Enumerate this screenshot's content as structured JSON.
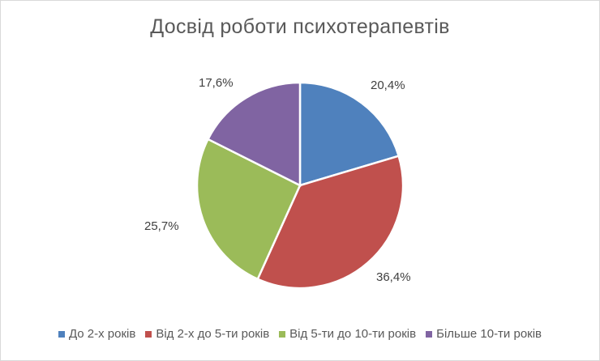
{
  "chart_data": {
    "type": "pie",
    "title": "Досвід роботи психотерапевтів",
    "categories": [
      "До 2-х років",
      "Від 2-х до 5-ти років",
      "Від 5-ти до 10-ти років",
      "Більше 10-ти років"
    ],
    "values": [
      20.4,
      36.4,
      25.7,
      17.6
    ],
    "labels": [
      "20,4%",
      "36,4%",
      "25,7%",
      "17,6%"
    ],
    "colors": [
      "#4f81bd",
      "#c0504d",
      "#9bbb59",
      "#8064a2"
    ],
    "legend_position": "bottom",
    "start_angle": "12 o'clock, clockwise"
  },
  "legend": {
    "items": [
      {
        "label": "До 2-х років",
        "color": "#4f81bd"
      },
      {
        "label": "Від 2-х до 5-ти років",
        "color": "#c0504d"
      },
      {
        "label": "Від 5-ти до 10-ти років",
        "color": "#9bbb59"
      },
      {
        "label": "Більше 10-ти років",
        "color": "#8064a2"
      }
    ]
  }
}
